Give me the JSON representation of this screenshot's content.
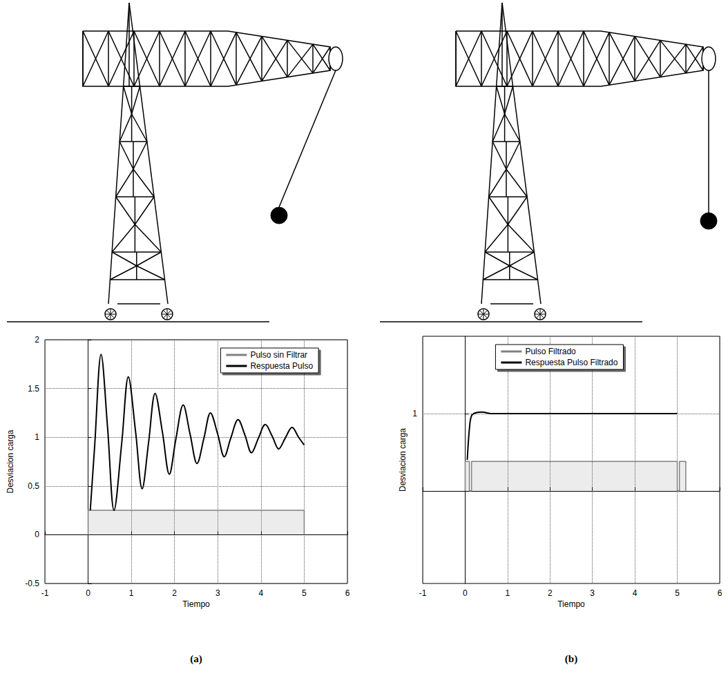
{
  "chart_data": [
    {
      "type": "line",
      "label": "(a)",
      "xlabel": "Tiempo",
      "ylabel": "Desviacion carga",
      "xlim": [
        -1,
        6
      ],
      "xticks": [
        -1,
        0,
        1,
        2,
        3,
        4,
        5,
        6
      ],
      "ylim": [
        -0.5,
        2
      ],
      "yticks": [
        -0.5,
        0,
        0.5,
        1,
        1.5,
        2
      ],
      "grid": true,
      "legend": "upper right",
      "series": [
        {
          "name": "Pulso sin Filtrar",
          "color": "#808080",
          "x": [
            0,
            0,
            5,
            5
          ],
          "values": [
            0,
            0.25,
            0.25,
            0
          ]
        },
        {
          "name": "Respuesta Pulso",
          "color": "#000000",
          "x": [
            0.05,
            0.15,
            0.3,
            0.45,
            0.6,
            0.78,
            0.93,
            1.1,
            1.25,
            1.4,
            1.55,
            1.72,
            1.88,
            2.03,
            2.2,
            2.36,
            2.52,
            2.68,
            2.83,
            3.0,
            3.15,
            3.3,
            3.47,
            3.63,
            3.78,
            3.94,
            4.1,
            4.26,
            4.41,
            4.56,
            4.72,
            4.87,
            5.0
          ],
          "values": [
            0.25,
            0.9,
            1.85,
            1.1,
            0.25,
            0.95,
            1.62,
            1.05,
            0.47,
            0.95,
            1.45,
            1.05,
            0.62,
            0.98,
            1.33,
            1.03,
            0.73,
            0.99,
            1.25,
            1.03,
            0.8,
            0.99,
            1.18,
            1.02,
            0.84,
            0.99,
            1.13,
            1.01,
            0.88,
            0.99,
            1.1,
            1.0,
            0.92
          ]
        }
      ]
    },
    {
      "type": "line",
      "label": "(b)",
      "xlabel": "Tiempo",
      "ylabel": "Desviacion carga",
      "xlim": [
        -1,
        6
      ],
      "xticks": [
        -1,
        0,
        1,
        2,
        3,
        4,
        5,
        6
      ],
      "ylim": [
        -1.2,
        2
      ],
      "yticks": [
        1
      ],
      "grid": true,
      "legend": "upper center",
      "series": [
        {
          "name": "Pulso Filtrado",
          "color": "#808080",
          "x": [
            0,
            0,
            0.1,
            0.1,
            0.15,
            0.15,
            5,
            5,
            5.05,
            5.05,
            5.2,
            5.2
          ],
          "values": [
            0,
            0.38,
            0.38,
            0,
            0,
            0.38,
            0.38,
            0,
            0,
            0.38,
            0.38,
            0
          ]
        },
        {
          "name": "Respuesta Pulso Filtrado",
          "color": "#000000",
          "x": [
            0.05,
            0.1,
            0.15,
            0.25,
            0.4,
            0.6,
            1,
            2,
            3,
            4,
            5
          ],
          "values": [
            0.4,
            0.8,
            0.97,
            1.01,
            1.02,
            1.0,
            1.0,
            1.0,
            1.0,
            1.0,
            1.0
          ]
        }
      ]
    }
  ]
}
